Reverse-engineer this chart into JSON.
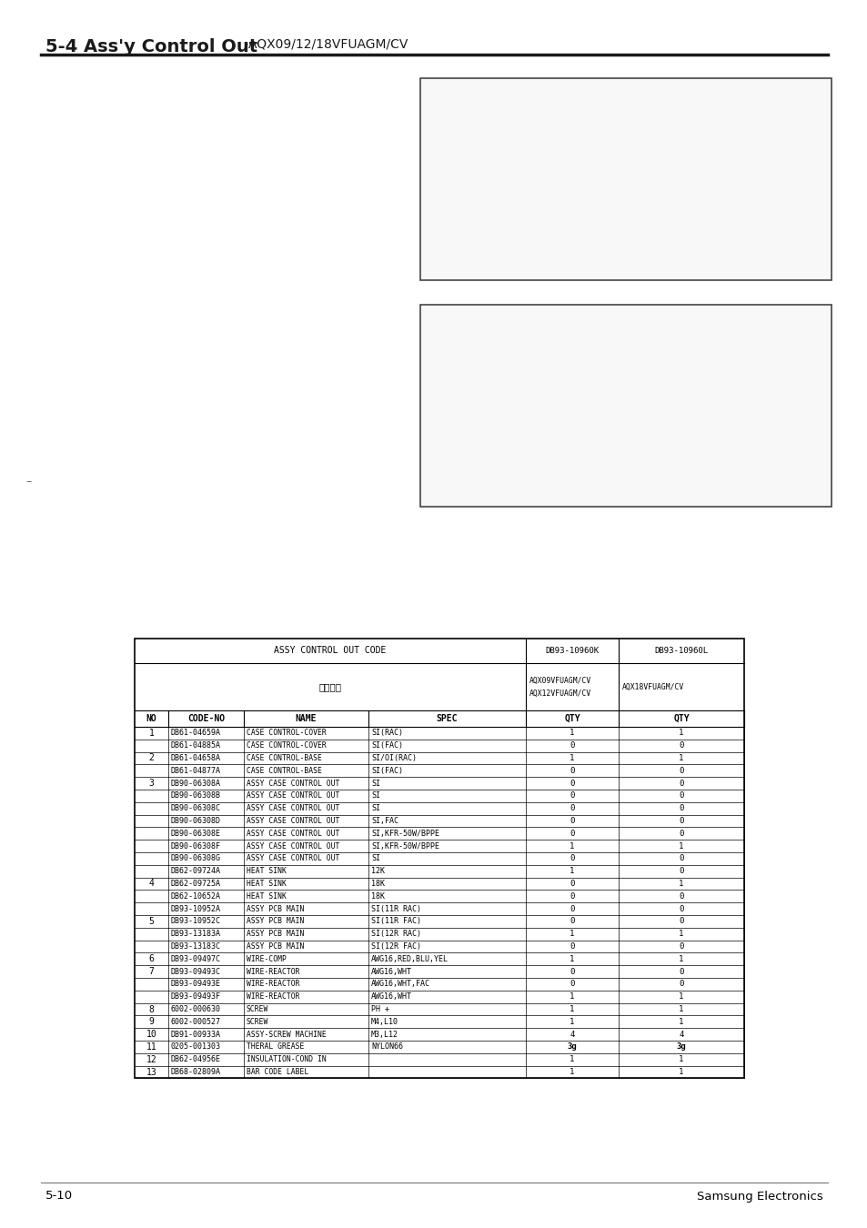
{
  "title_bold": "5-4 Ass'y Control Out",
  "title_suffix": " -AQX09/12/18VFUAGM/CV",
  "header1": "ASSY CONTROL OUT CODE",
  "col_k": "DB93-10960K",
  "col_l": "DB93-10960L",
  "model_k1": "AQX09VFUAGM/CV",
  "model_k2": "AQX12VFUAGM/CV",
  "model_l": "AQX18VFUAGM/CV",
  "zoning_label": "适用型号",
  "col_headers": [
    "NO",
    "CODE-NO",
    "NAME",
    "SPEC",
    "QTY",
    "QTY"
  ],
  "rows": [
    [
      "1",
      "DB61-04659A",
      "CASE CONTROL-COVER",
      "SI(RAC)",
      "1",
      "1"
    ],
    [
      "",
      "DB61-04885A",
      "CASE CONTROL-COVER",
      "SI(FAC)",
      "0",
      "0"
    ],
    [
      "2",
      "DB61-04658A",
      "CASE CONTROL-BASE",
      "SI/OI(RAC)",
      "1",
      "1"
    ],
    [
      "",
      "DB61-04877A",
      "CASE CONTROL-BASE",
      "SI(FAC)",
      "0",
      "0"
    ],
    [
      "3",
      "DB90-06308A",
      "ASSY CASE CONTROL OUT",
      "SI",
      "0",
      "0"
    ],
    [
      "",
      "DB90-06308B",
      "ASSY CASE CONTROL OUT",
      "SI",
      "0",
      "0"
    ],
    [
      "",
      "DB90-06308C",
      "ASSY CASE CONTROL OUT",
      "SI",
      "0",
      "0"
    ],
    [
      "",
      "DB90-06308D",
      "ASSY CASE CONTROL OUT",
      "SI,FAC",
      "0",
      "0"
    ],
    [
      "",
      "DB90-06308E",
      "ASSY CASE CONTROL OUT",
      "SI,KFR-50W/BPPE",
      "0",
      "0"
    ],
    [
      "",
      "DB90-06308F",
      "ASSY CASE CONTROL OUT",
      "SI,KFR-50W/BPPE",
      "1",
      "1"
    ],
    [
      "",
      "DB90-06308G",
      "ASSY CASE CONTROL OUT",
      "SI",
      "0",
      "0"
    ],
    [
      "",
      "DB62-09724A",
      "HEAT SINK",
      "12K",
      "1",
      "0"
    ],
    [
      "4",
      "DB62-09725A",
      "HEAT SINK",
      "18K",
      "0",
      "1"
    ],
    [
      "",
      "DB62-10652A",
      "HEAT SINK",
      "18K",
      "0",
      "0"
    ],
    [
      "",
      "DB93-10952A",
      "ASSY PCB MAIN",
      "SI(11R RAC)",
      "0",
      "0"
    ],
    [
      "5",
      "DB93-10952C",
      "ASSY PCB MAIN",
      "SI(11R FAC)",
      "0",
      "0"
    ],
    [
      "",
      "DB93-13183A",
      "ASSY PCB MAIN",
      "SI(12R RAC)",
      "1",
      "1"
    ],
    [
      "",
      "DB93-13183C",
      "ASSY PCB MAIN",
      "SI(12R FAC)",
      "0",
      "0"
    ],
    [
      "6",
      "DB93-09497C",
      "WIRE-COMP",
      "AWG16,RED,BLU,YEL",
      "1",
      "1"
    ],
    [
      "7",
      "DB93-09493C",
      "WIRE-REACTOR",
      "AWG16,WHT",
      "0",
      "0"
    ],
    [
      "",
      "DB93-09493E",
      "WIRE-REACTOR",
      "AWG16,WHT,FAC",
      "0",
      "0"
    ],
    [
      "",
      "DB93-09493F",
      "WIRE-REACTOR",
      "AWG16,WHT",
      "1",
      "1"
    ],
    [
      "8",
      "6002-000630",
      "SCREW",
      "PH +",
      "1",
      "1"
    ],
    [
      "9",
      "6002-000527",
      "SCREW",
      "M4,L10",
      "1",
      "1"
    ],
    [
      "10",
      "DB91-00933A",
      "ASSY-SCREW MACHINE",
      "M3,L12",
      "4",
      "4"
    ],
    [
      "11",
      "0205-001303",
      "THERAL GREASE",
      "NYLON66",
      "3g",
      "3g"
    ],
    [
      "12",
      "DB62-04956E",
      "INSULATION-COND IN",
      "",
      "1",
      "1"
    ],
    [
      "13",
      "DB68-02809A",
      "BAR CODE LABEL",
      "",
      "1",
      "1"
    ]
  ],
  "footer_left": "5-10",
  "footer_right": "Samsung Electronics",
  "bg_color": "#ffffff",
  "line_color": "#000000",
  "title_line_color": "#1a1a1a",
  "diagram_border_color": "#444444",
  "diagram_fill_color": "#f8f8f8"
}
